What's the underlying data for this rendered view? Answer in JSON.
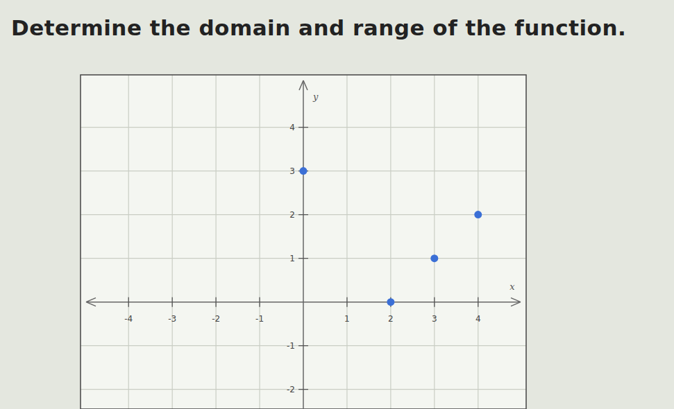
{
  "chart_data": {
    "type": "scatter",
    "title": "Determine the domain and range of the function.",
    "x_label": "x",
    "y_label": "y",
    "x": [
      0,
      2,
      3,
      4
    ],
    "values": [
      3,
      0,
      1,
      2
    ],
    "color": "#3b6fd6",
    "marker": "circle",
    "xlim": [
      -5.1,
      5.1
    ],
    "xticks": [
      -4,
      -3,
      -2,
      -1,
      1,
      2,
      3,
      4
    ],
    "ylim": [
      -2.45,
      5.2
    ],
    "yticks": [
      -2,
      -1,
      1,
      2,
      3,
      4
    ],
    "grid": true
  }
}
